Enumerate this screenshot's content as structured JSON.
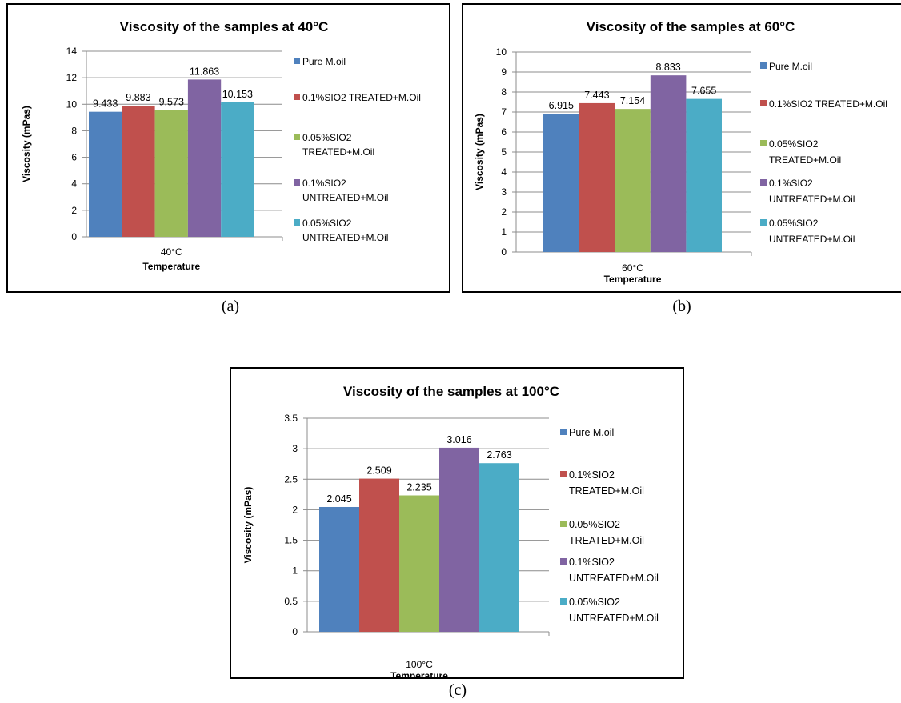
{
  "figure": {
    "captions": [
      "(a)",
      "(b)",
      "(c)"
    ]
  },
  "colors": {
    "series": [
      "#4F81BD",
      "#C0504D",
      "#9BBB59",
      "#8064A2",
      "#4BACC6"
    ]
  },
  "chart_data": [
    {
      "type": "bar",
      "title": "Viscosity of the samples at 40°C",
      "xlabel": "Temperature",
      "ylabel": "Viscosity (mPas)",
      "categories": [
        "40°C"
      ],
      "ylim": [
        0,
        14
      ],
      "yticks": [
        "0",
        "2",
        "4",
        "6",
        "8",
        "10",
        "12",
        "14"
      ],
      "grid": true,
      "legend_position": "right",
      "series": [
        {
          "name": "Pure M.oil",
          "values": [
            9.433
          ],
          "label": "9.433"
        },
        {
          "name": "0.1%SIO2 TREATED+M.Oil",
          "values": [
            9.883
          ],
          "label": "9.883"
        },
        {
          "name": "0.05%SIO2 TREATED+M.Oil",
          "values": [
            9.573
          ],
          "label": "9.573"
        },
        {
          "name": "0.1%SIO2 UNTREATED+M.Oil",
          "values": [
            11.863
          ],
          "label": "11.863"
        },
        {
          "name": "0.05%SIO2 UNTREATED+M.Oil",
          "values": [
            10.153
          ],
          "label": "10.153"
        }
      ]
    },
    {
      "type": "bar",
      "title": "Viscosity of the samples at 60°C",
      "xlabel": "Temperature",
      "ylabel": "Viscosity (mPas)",
      "categories": [
        "60°C"
      ],
      "ylim": [
        0,
        10
      ],
      "yticks": [
        "0",
        "1",
        "2",
        "3",
        "4",
        "5",
        "6",
        "7",
        "8",
        "9",
        "10"
      ],
      "grid": true,
      "legend_position": "right",
      "series": [
        {
          "name": "Pure M.oil",
          "values": [
            6.915
          ],
          "label": "6.915"
        },
        {
          "name": "0.1%SIO2 TREATED+M.Oil",
          "values": [
            7.443
          ],
          "label": "7.443"
        },
        {
          "name": "0.05%SIO2 TREATED+M.Oil",
          "values": [
            7.154
          ],
          "label": "7.154"
        },
        {
          "name": "0.1%SIO2 UNTREATED+M.Oil",
          "values": [
            8.833
          ],
          "label": "8.833"
        },
        {
          "name": "0.05%SIO2 UNTREATED+M.Oil",
          "values": [
            7.655
          ],
          "label": "7.655"
        }
      ]
    },
    {
      "type": "bar",
      "title": "Viscosity of the samples at 100°C",
      "xlabel": "Temperature",
      "ylabel": "Viscosity (mPas)",
      "categories": [
        "100°C"
      ],
      "ylim": [
        0,
        3.5
      ],
      "yticks": [
        "0",
        "0.5",
        "1",
        "1.5",
        "2",
        "2.5",
        "3",
        "3.5"
      ],
      "grid": true,
      "legend_position": "right",
      "series": [
        {
          "name": "Pure M.oil",
          "values": [
            2.045
          ],
          "label": "2.045"
        },
        {
          "name": "0.1%SIO2 TREATED+M.Oil",
          "values": [
            2.509
          ],
          "label": "2.509"
        },
        {
          "name": "0.05%SIO2 TREATED+M.Oil",
          "values": [
            2.235
          ],
          "label": "2.235"
        },
        {
          "name": "0.1%SIO2 UNTREATED+M.Oil",
          "values": [
            3.016
          ],
          "label": "3.016"
        },
        {
          "name": "0.05%SIO2 UNTREATED+M.Oil",
          "values": [
            2.763
          ],
          "label": "2.763"
        }
      ]
    }
  ]
}
